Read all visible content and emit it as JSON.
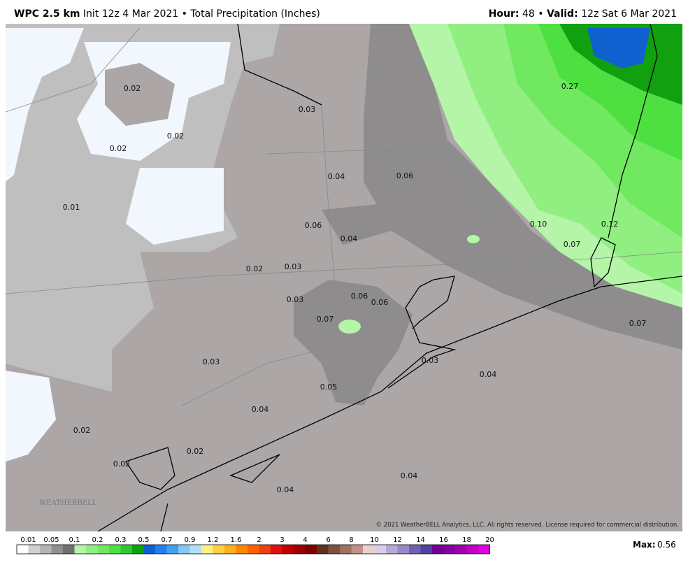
{
  "header": {
    "model": "WPC 2.5 km",
    "init": "Init 12z 4 Mar 2021",
    "separator": "•",
    "field": "Total Precipitation (Inches)",
    "hour_label": "Hour:",
    "hour": "48",
    "valid_label": "Valid:",
    "valid": "12z Sat 6 Mar 2021"
  },
  "map_labels": [
    "0.02",
    "0.03",
    "0.02",
    "0.02",
    "0.04",
    "0.06",
    "0.01",
    "0.27",
    "0.10",
    "0.12",
    "0.06",
    "0.04",
    "0.07",
    "0.02",
    "0.03",
    "0.03",
    "0.06",
    "0.06",
    "0.07",
    "0.07",
    "0.03",
    "0.04",
    "0.03",
    "0.05",
    "0.04",
    "0.02",
    "0.02",
    "0.02",
    "0.04",
    "0.04"
  ],
  "logo": "WEATHERBELL",
  "copyright": "© 2021 WeatherBELL Analytics, LLC. All rights reserved. License required for commercial distribution.",
  "colorbar": {
    "labels": [
      "0.01",
      "0.05",
      "0.1",
      "0.2",
      "0.3",
      "0.5",
      "0.7",
      "0.9",
      "1.2",
      "1.6",
      "2",
      "3",
      "4",
      "6",
      "8",
      "10",
      "12",
      "14",
      "16",
      "18",
      "20"
    ],
    "colors": [
      "#ffffff",
      "#d0d0d0",
      "#b4b4b4",
      "#909090",
      "#707070",
      "#b4f5a8",
      "#90ef80",
      "#70e860",
      "#4ee040",
      "#30c830",
      "#10a010",
      "#1060d0",
      "#2080f0",
      "#40a0f0",
      "#80c8f8",
      "#b0e0f8",
      "#fff080",
      "#ffd040",
      "#ffb020",
      "#ff8800",
      "#ff6000",
      "#f04010",
      "#e01010",
      "#c00000",
      "#a00000",
      "#800000",
      "#603020",
      "#805040",
      "#a07060",
      "#c09088",
      "#e8d0d0",
      "#d8d0e8",
      "#b8a8d8",
      "#9888c8",
      "#7060b0",
      "#5040a0",
      "#700090",
      "#8800a0",
      "#a000b0",
      "#c000c8",
      "#e000e0"
    ]
  },
  "max_label": "Max:",
  "max_value": "0.56"
}
